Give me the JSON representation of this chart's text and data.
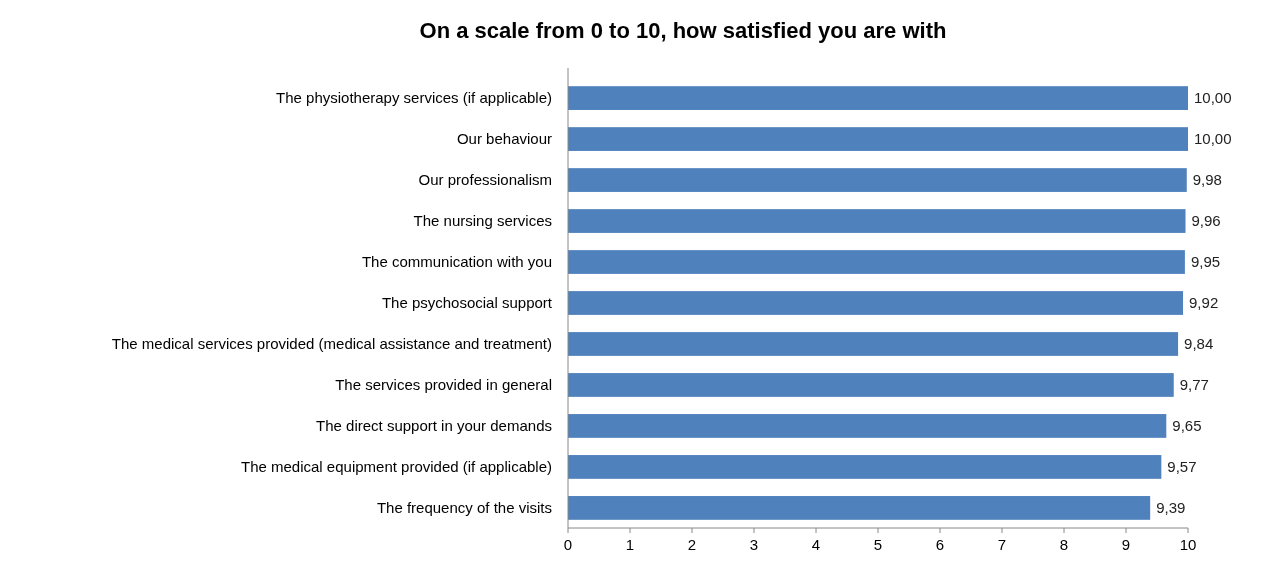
{
  "chart_data": {
    "type": "bar",
    "orientation": "horizontal",
    "title": "On a scale from 0 to 10, how satisfied you are with",
    "categories": [
      "The physiotherapy services (if applicable)",
      "Our behaviour",
      "Our professionalism",
      "The nursing services",
      "The communication with you",
      "The psychosocial support",
      "The medical services provided (medical assistance and treatment)",
      "The services provided in general",
      "The direct support in your demands",
      "The medical equipment provided (if applicable)",
      "The frequency of the visits"
    ],
    "values": [
      10.0,
      10.0,
      9.98,
      9.96,
      9.95,
      9.92,
      9.84,
      9.77,
      9.65,
      9.57,
      9.39
    ],
    "value_labels": [
      "10,00",
      "10,00",
      "9,98",
      "9,96",
      "9,95",
      "9,92",
      "9,84",
      "9,77",
      "9,65",
      "9,57",
      "9,39"
    ],
    "color": "#4f81bd",
    "xlim": [
      0,
      10
    ],
    "xticks": [
      0,
      1,
      2,
      3,
      4,
      5,
      6,
      7,
      8,
      9,
      10
    ]
  }
}
